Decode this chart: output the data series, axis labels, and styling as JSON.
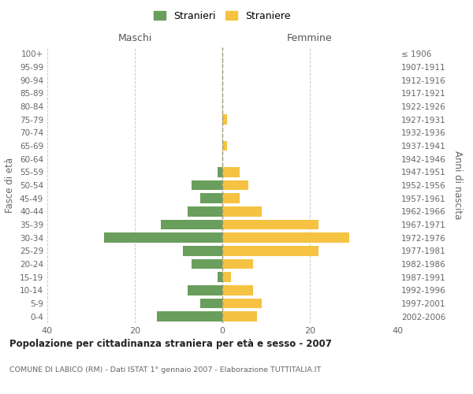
{
  "age_groups": [
    "0-4",
    "5-9",
    "10-14",
    "15-19",
    "20-24",
    "25-29",
    "30-34",
    "35-39",
    "40-44",
    "45-49",
    "50-54",
    "55-59",
    "60-64",
    "65-69",
    "70-74",
    "75-79",
    "80-84",
    "85-89",
    "90-94",
    "95-99",
    "100+"
  ],
  "birth_years": [
    "2002-2006",
    "1997-2001",
    "1992-1996",
    "1987-1991",
    "1982-1986",
    "1977-1981",
    "1972-1976",
    "1967-1971",
    "1962-1966",
    "1957-1961",
    "1952-1956",
    "1947-1951",
    "1942-1946",
    "1937-1941",
    "1932-1936",
    "1927-1931",
    "1922-1926",
    "1917-1921",
    "1912-1916",
    "1907-1911",
    "≤ 1906"
  ],
  "maschi": [
    15,
    5,
    8,
    1,
    7,
    9,
    27,
    14,
    8,
    5,
    7,
    1,
    0,
    0,
    0,
    0,
    0,
    0,
    0,
    0,
    0
  ],
  "femmine": [
    8,
    9,
    7,
    2,
    7,
    22,
    29,
    22,
    9,
    4,
    6,
    4,
    0,
    1,
    0,
    1,
    0,
    0,
    0,
    0,
    0
  ],
  "maschi_color": "#6a9e5c",
  "femmine_color": "#f5c242",
  "title": "Popolazione per cittadinanza straniera per età e sesso - 2007",
  "subtitle": "COMUNE DI LABICO (RM) - Dati ISTAT 1° gennaio 2007 - Elaborazione TUTTITALIA.IT",
  "xlabel_left": "Maschi",
  "xlabel_right": "Femmine",
  "ylabel_left": "Fasce di età",
  "ylabel_right": "Anni di nascita",
  "legend_maschi": "Stranieri",
  "legend_femmine": "Straniere",
  "xlim": 40,
  "background_color": "#ffffff",
  "grid_color": "#cccccc",
  "bar_height": 0.75
}
